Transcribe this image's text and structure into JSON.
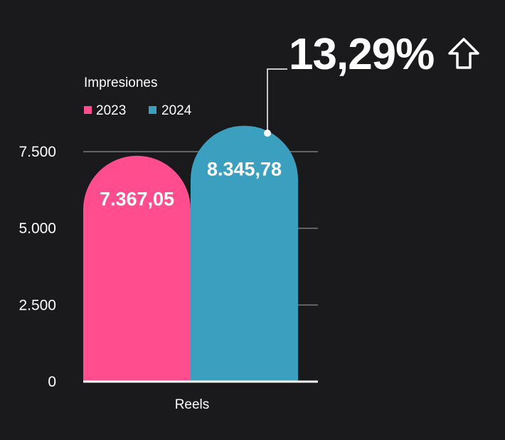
{
  "chart_data": {
    "type": "bar",
    "ylabel": "Impresiones",
    "categories": [
      "Reels"
    ],
    "series": [
      {
        "name": "2023",
        "values": [
          7367.05
        ],
        "value_label": "7.367,05",
        "color": "#ff4d8d"
      },
      {
        "name": "2024",
        "values": [
          8345.78
        ],
        "value_label": "8.345,78",
        "color": "#3ba0c0"
      }
    ],
    "y_ticks": [
      {
        "value": 0,
        "label": "0"
      },
      {
        "value": 2500,
        "label": "2.500"
      },
      {
        "value": 5000,
        "label": "5.000"
      },
      {
        "value": 7500,
        "label": "7.500"
      }
    ],
    "ylim": [
      0,
      7500
    ],
    "legend_position": "top-left",
    "grid": true,
    "annotation": {
      "text": "13,29%",
      "icon": "arrow-up-icon"
    },
    "colors": {
      "background": "#1a1a1c",
      "text": "#ffffff",
      "grid": "#7a7a7a"
    }
  }
}
